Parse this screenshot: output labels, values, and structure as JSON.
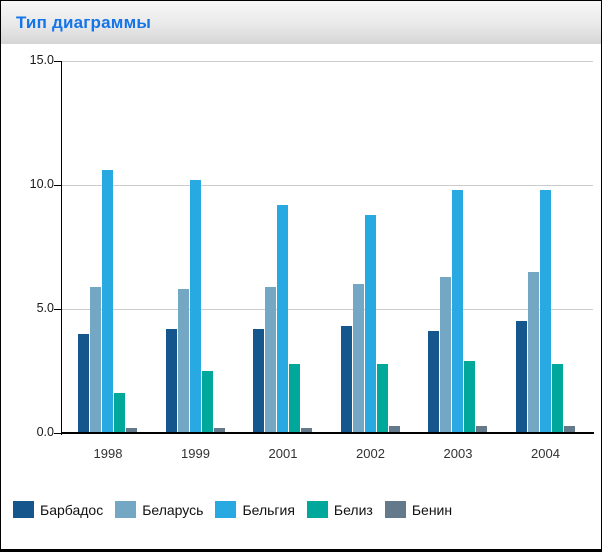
{
  "window": {
    "title": "Тип диаграммы"
  },
  "chart_data": {
    "type": "bar",
    "title": "Тип диаграммы",
    "categories": [
      "1998",
      "1999",
      "2001",
      "2002",
      "2003",
      "2004"
    ],
    "series": [
      {
        "name": "Барбадос",
        "color": "#15568c",
        "values": [
          4.0,
          4.2,
          4.2,
          4.3,
          4.1,
          4.5
        ]
      },
      {
        "name": "Беларусь",
        "color": "#74a7c4",
        "values": [
          5.9,
          5.8,
          5.9,
          6.0,
          6.3,
          6.5
        ]
      },
      {
        "name": "Бельгия",
        "color": "#29a9e1",
        "values": [
          10.6,
          10.2,
          9.2,
          8.8,
          9.8,
          9.8
        ]
      },
      {
        "name": "Белиз",
        "color": "#00a79b",
        "values": [
          1.6,
          2.5,
          2.8,
          2.8,
          2.9,
          2.8
        ]
      },
      {
        "name": "Бенин",
        "color": "#64798a",
        "values": [
          0.2,
          0.2,
          0.2,
          0.3,
          0.3,
          0.3
        ]
      }
    ],
    "ylim": [
      0,
      15
    ],
    "yticks": [
      {
        "label": "15.0",
        "value": 15
      },
      {
        "label": "10.0",
        "value": 10
      },
      {
        "label": "5.0",
        "value": 5
      },
      {
        "label": "0.0",
        "value": 0
      }
    ],
    "grid": true,
    "legend_position": "bottom"
  }
}
